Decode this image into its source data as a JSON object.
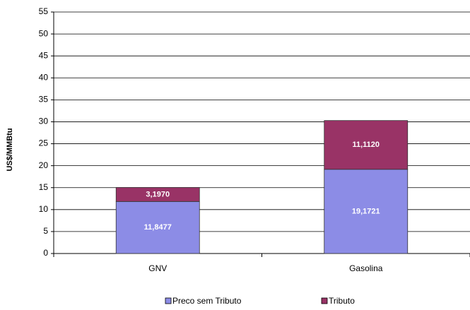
{
  "chart_data": {
    "type": "stacked_bar",
    "y_label": "US$/MMBtu",
    "categories": [
      "GNV",
      "Gasolina"
    ],
    "series": [
      {
        "name": "Preco sem Tributo",
        "color": "#8c8ce6",
        "values": [
          11.8477,
          19.1721
        ],
        "value_labels": [
          "11,8477",
          "19,1721"
        ]
      },
      {
        "name": "Tributo",
        "color": "#993366",
        "values": [
          3.197,
          11.112
        ],
        "value_labels": [
          "3,1970",
          "11,1120"
        ]
      }
    ],
    "ylim": [
      0,
      55
    ],
    "yticks": [
      0,
      5,
      10,
      15,
      20,
      25,
      30,
      35,
      40,
      45,
      50,
      55
    ],
    "grid": true
  }
}
